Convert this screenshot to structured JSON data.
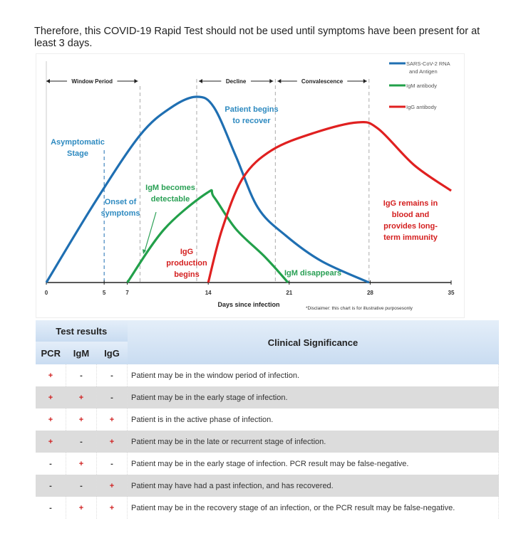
{
  "intro_text": "Therefore, this COVID-19 Rapid Test should not be used until symptoms have been present for at least 3 days.",
  "chart_data": {
    "type": "line",
    "xlabel": "Days since infection",
    "ylabel": "",
    "xlim": [
      0,
      35
    ],
    "ylim": [
      0,
      100
    ],
    "x_ticks": [
      0,
      5,
      7,
      14,
      21,
      28,
      35
    ],
    "grid": false,
    "legend_position": "top-right",
    "series": [
      {
        "name": "SARS-CoV-2 RNA and Antigen",
        "color": "#1f6fb2",
        "x": [
          0,
          4.25,
          8.1,
          10.8,
          13,
          14.5,
          16.4,
          18.3,
          20.7,
          23.8,
          27.9
        ],
        "y": [
          0,
          38,
          69,
          82,
          87,
          82,
          59,
          35,
          22,
          10,
          0
        ]
      },
      {
        "name": "IgM antibody",
        "color": "#22a04a",
        "x": [
          7,
          10.2,
          13.9,
          14.5,
          16.4,
          18.9,
          20.9
        ],
        "y": [
          0,
          25,
          42,
          40,
          25,
          12,
          0
        ]
      },
      {
        "name": "IgG antibody",
        "color": "#e02020",
        "x": [
          14,
          15.2,
          17,
          19.5,
          23.1,
          26.9,
          28.7,
          31.8,
          35
        ],
        "y": [
          0,
          25,
          49,
          62,
          70,
          75,
          72,
          55,
          43
        ]
      }
    ],
    "phases": [
      {
        "label": "Window Period",
        "from": 0,
        "to": 8.1
      },
      {
        "label": "Decline",
        "from": 13,
        "to": 19.8
      },
      {
        "label": "Convalescence",
        "from": 19.8,
        "to": 27.9
      }
    ],
    "annotations": {
      "asymptomatic": [
        "Asymptomatic",
        "Stage"
      ],
      "onset": [
        "Onset of",
        "symptoms"
      ],
      "recover": [
        "Patient begins",
        "to recover"
      ],
      "igm_detect": [
        "IgM becomes",
        "detectable"
      ],
      "igg_begin": [
        "IgG",
        "production",
        "begins"
      ],
      "igm_gone": "IgM disappears",
      "igg_remains": [
        "IgG remains in",
        "blood and",
        "provides long-",
        "term immunity"
      ]
    },
    "disclaimer": "*Disclaimer: this chart is for illustrative purposesonly"
  },
  "table": {
    "group_header": "Test results",
    "columns": [
      "PCR",
      "IgM",
      "IgG"
    ],
    "significance_header": "Clinical Significance",
    "rows": [
      {
        "pcr": "+",
        "igm": "-",
        "igg": "-",
        "text": "Patient may be in the window period of infection."
      },
      {
        "pcr": "+",
        "igm": "+",
        "igg": "-",
        "text": "Patient may be in the early stage of infection."
      },
      {
        "pcr": "+",
        "igm": "+",
        "igg": "+",
        "text": "Patient is in the active phase of infection."
      },
      {
        "pcr": "+",
        "igm": "-",
        "igg": "+",
        "text": "Patient may be in the late or recurrent stage of infection."
      },
      {
        "pcr": "-",
        "igm": "+",
        "igg": "-",
        "text": "Patient may be in the early stage of infection. PCR result may be false-negative."
      },
      {
        "pcr": "-",
        "igm": "-",
        "igg": "+",
        "text": "Patient may have had a past infection, and has recovered."
      },
      {
        "pcr": "-",
        "igm": "+",
        "igg": "+",
        "text": "Patient may be in the recovery stage of an infection, or the PCR result may be false-negative."
      }
    ]
  }
}
